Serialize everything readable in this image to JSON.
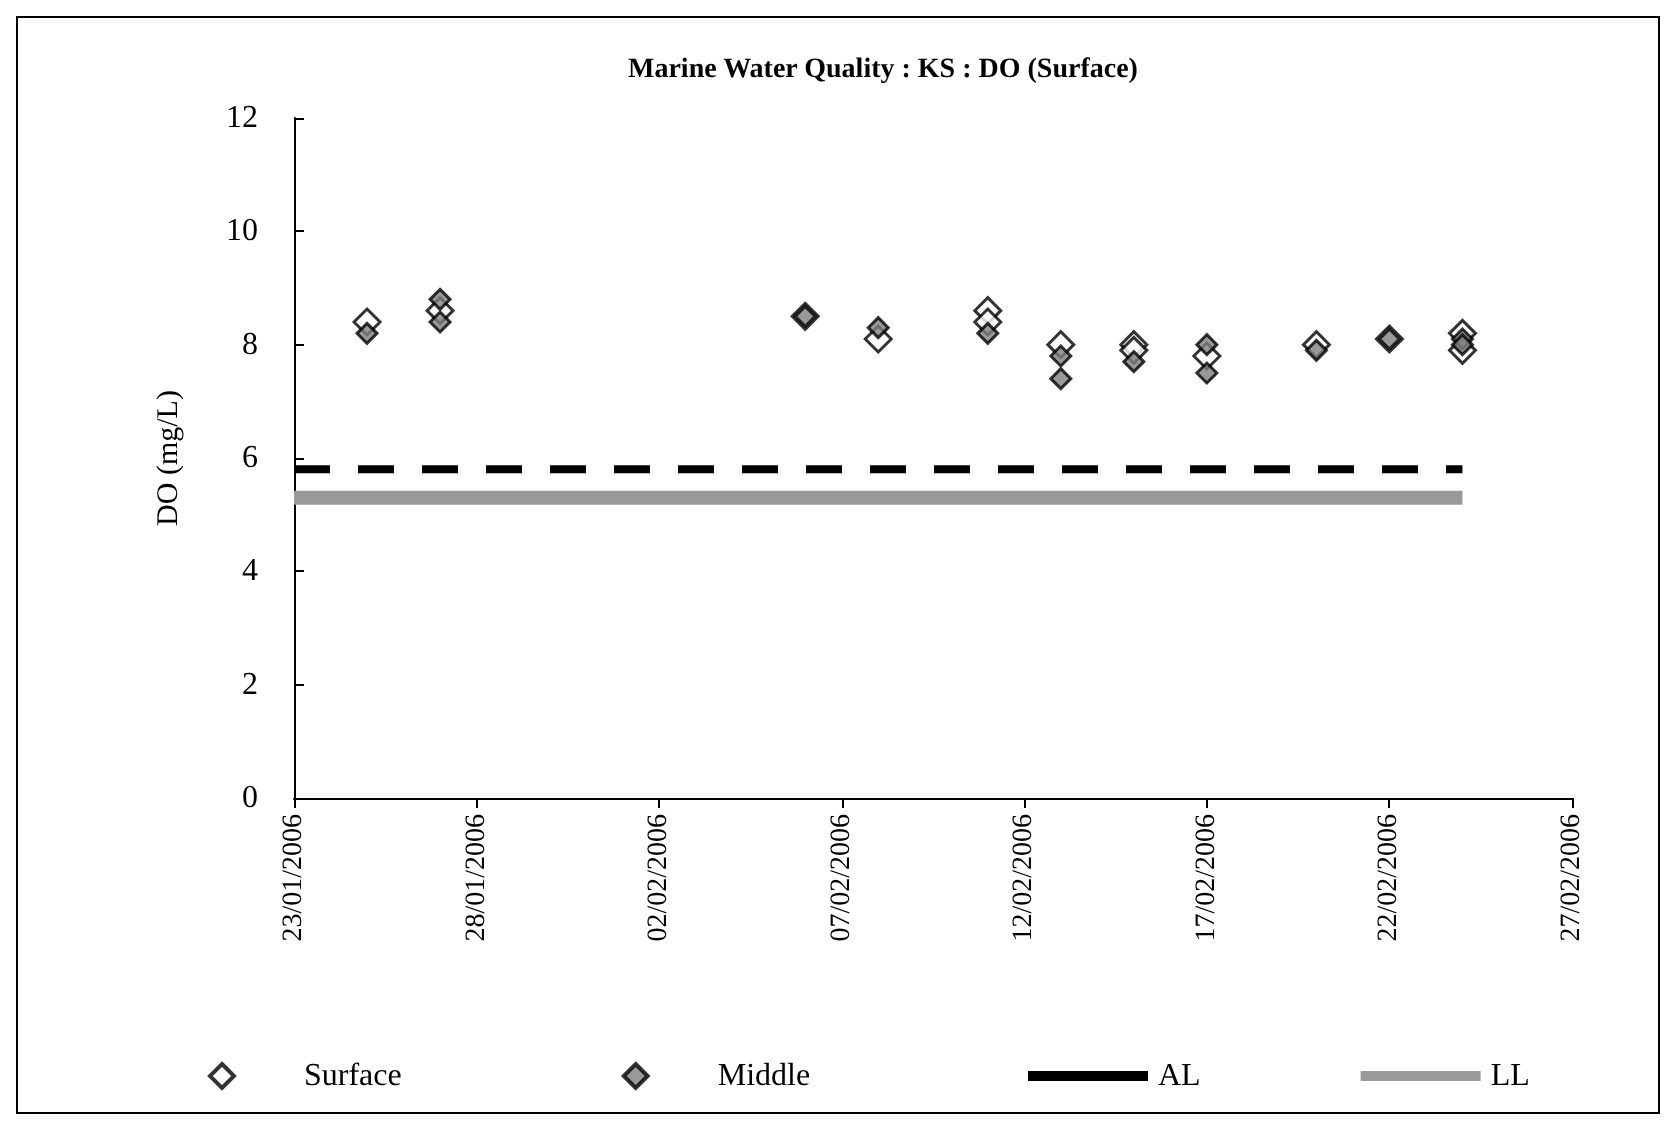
{
  "chart_data": {
    "type": "scatter",
    "title": "Marine Water Quality : KS : DO (Surface)",
    "ylabel": "DO (mg/L)",
    "series": [
      {
        "name": "Surface",
        "color": "#ffffff",
        "marker": "diamond",
        "x": [
          "2006-01-25",
          "2006-01-27",
          "2006-02-06",
          "2006-02-08",
          "2006-02-11",
          "2006-02-11",
          "2006-02-13",
          "2006-02-15",
          "2006-02-15",
          "2006-02-17",
          "2006-02-20",
          "2006-02-22",
          "2006-02-24",
          "2006-02-24"
        ],
        "values": [
          8.4,
          8.6,
          8.5,
          8.1,
          8.6,
          8.4,
          8.0,
          8.0,
          7.9,
          7.8,
          8.0,
          8.1,
          8.2,
          7.9
        ]
      },
      {
        "name": "Middle",
        "color": "#808080",
        "marker": "diamond",
        "x": [
          "2006-01-25",
          "2006-01-27",
          "2006-01-27",
          "2006-02-06",
          "2006-02-08",
          "2006-02-11",
          "2006-02-13",
          "2006-02-13",
          "2006-02-15",
          "2006-02-17",
          "2006-02-17",
          "2006-02-20",
          "2006-02-22",
          "2006-02-24",
          "2006-02-24"
        ],
        "values": [
          8.2,
          8.8,
          8.4,
          8.5,
          8.3,
          8.2,
          7.8,
          7.4,
          7.7,
          8.0,
          7.5,
          7.9,
          8.1,
          8.1,
          8.0
        ]
      },
      {
        "name": "AL",
        "type": "line",
        "color": "#000000",
        "line_style": "dashed",
        "marker": "none",
        "x": [
          "2006-01-23",
          "2006-02-24"
        ],
        "values": [
          5.8,
          5.8
        ]
      },
      {
        "name": "LL",
        "type": "line",
        "color": "#999999",
        "line_style": "solid",
        "marker": "none",
        "x": [
          "2006-01-23",
          "2006-02-24"
        ],
        "values": [
          5.3,
          5.3
        ]
      }
    ],
    "xlim": [
      "2006-01-23",
      "2006-02-27"
    ],
    "xticks": [
      {
        "value": "2006-01-23",
        "label": "23/01/2006"
      },
      {
        "value": "2006-01-28",
        "label": "28/01/2006"
      },
      {
        "value": "2006-02-02",
        "label": "02/02/2006"
      },
      {
        "value": "2006-02-07",
        "label": "07/02/2006"
      },
      {
        "value": "2006-02-12",
        "label": "12/02/2006"
      },
      {
        "value": "2006-02-17",
        "label": "17/02/2006"
      },
      {
        "value": "2006-02-22",
        "label": "22/02/2006"
      },
      {
        "value": "2006-02-27",
        "label": "27/02/2006"
      }
    ],
    "ylim": [
      0,
      12
    ],
    "yticks": [
      0,
      2,
      4,
      6,
      8,
      10,
      12
    ],
    "grid": false,
    "legend": "bottom"
  }
}
